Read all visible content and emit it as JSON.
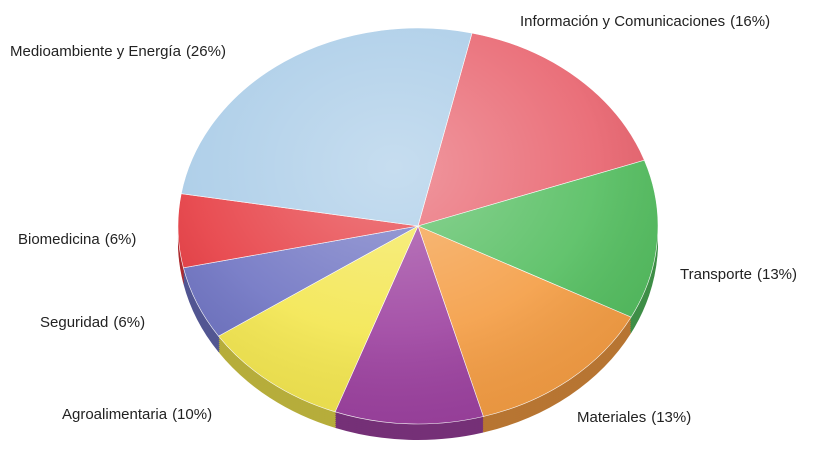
{
  "chart_data": {
    "type": "pie",
    "categories": [
      "Información y Comunicaciones",
      "Transporte",
      "Materiales",
      null,
      "Agroalimentaria",
      "Seguridad",
      "Biomedicina",
      "Medioambiente y Energía"
    ],
    "values": [
      16,
      13,
      13,
      10,
      10,
      6,
      6,
      26
    ],
    "value_labels": [
      "(16%)",
      "(13%)",
      "(13%)",
      null,
      "(10%)",
      "(6%)",
      "(6%)",
      "(26%)"
    ],
    "colors": [
      "#e8616c",
      "#52bd5e",
      "#f49c42",
      "#9c409f",
      "#f3e64e",
      "#6d72c2",
      "#e63a40",
      "#a8cbe7"
    ]
  }
}
